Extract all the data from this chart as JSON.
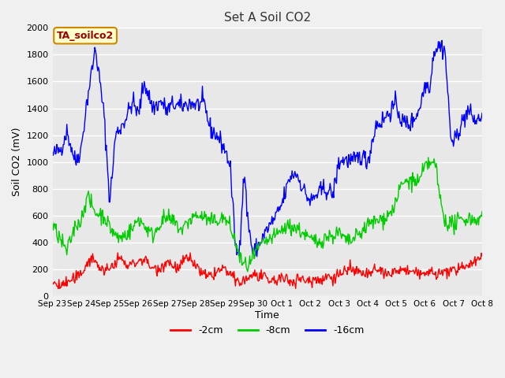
{
  "title": "Set A Soil CO2",
  "ylabel": "Soil CO2 (mV)",
  "xlabel": "Time",
  "ylim": [
    0,
    2000
  ],
  "fig_bg": "#f0f0f0",
  "plot_bg": "#e8e8e8",
  "grid_color": "#ffffff",
  "legend_labels": [
    "-2cm",
    "-8cm",
    "-16cm"
  ],
  "legend_colors": [
    "#ff0000",
    "#00cc00",
    "#0000ff"
  ],
  "tag_label": "TA_soilco2",
  "tag_bg": "#ffffcc",
  "tag_border": "#cc8800",
  "tag_text_color": "#990000",
  "x_ticks": [
    "Sep 23",
    "Sep 24",
    "Sep 25",
    "Sep 26",
    "Sep 27",
    "Sep 28",
    "Sep 29",
    "Sep 30",
    "Oct 1",
    "Oct 2",
    "Oct 3",
    "Oct 4",
    "Oct 5",
    "Oct 6",
    "Oct 7",
    "Oct 8"
  ],
  "yticks": [
    0,
    200,
    400,
    600,
    800,
    1000,
    1200,
    1400,
    1600,
    1800,
    2000
  ],
  "n_points": 600,
  "seed": 42
}
